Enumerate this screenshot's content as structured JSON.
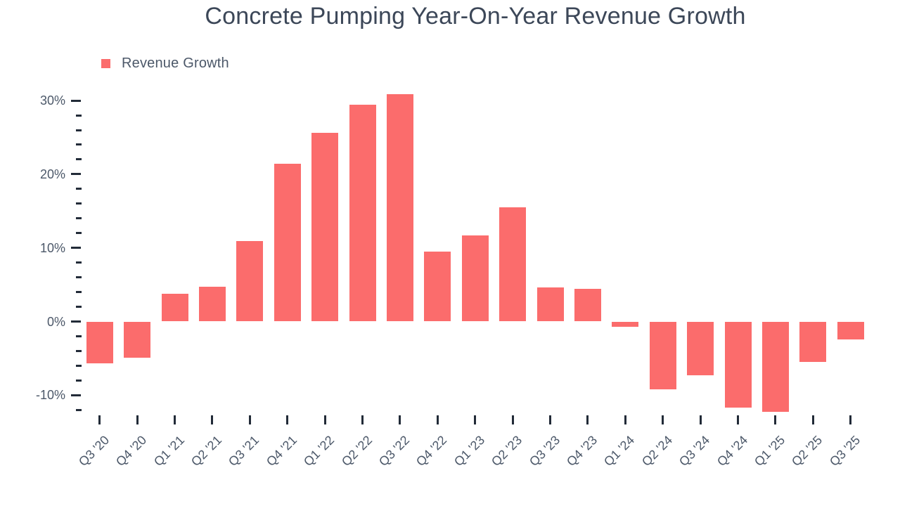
{
  "title": "Concrete Pumping Year-On-Year Revenue Growth",
  "legend": {
    "label": "Revenue Growth",
    "marker_color": "#fb6c6c"
  },
  "colors": {
    "bar": "#fb6c6c",
    "title_text": "#3c4758",
    "axis_text": "#4c5869",
    "tick": "#222b38"
  },
  "chart_data": {
    "type": "bar",
    "title": "Concrete Pumping Year-On-Year Revenue Growth",
    "series_name": "Revenue Growth",
    "unit": "%",
    "categories": [
      "Q3 '20",
      "Q4 '20",
      "Q1 '21",
      "Q2 '21",
      "Q3 '21",
      "Q4 '21",
      "Q1 '22",
      "Q2 '22",
      "Q3 '22",
      "Q4 '22",
      "Q1 '23",
      "Q2 '23",
      "Q3 '23",
      "Q4 '23",
      "Q1 '24",
      "Q2 '24",
      "Q3 '24",
      "Q4 '24",
      "Q1 '25",
      "Q2 '25",
      "Q3 '25"
    ],
    "values": [
      -5.7,
      -4.9,
      3.8,
      4.7,
      10.9,
      21.4,
      25.6,
      29.4,
      30.9,
      9.5,
      11.7,
      15.5,
      4.6,
      4.4,
      -0.7,
      -9.2,
      -7.3,
      -11.7,
      -12.3,
      -5.5,
      -2.4
    ],
    "xlabel": "",
    "ylabel": "",
    "y_axis": {
      "major_ticks": [
        30,
        20,
        10,
        0,
        -10
      ],
      "major_tick_labels": [
        "30%",
        "20%",
        "10%",
        "0%",
        "-10%"
      ],
      "minor_tick_step": 2,
      "range": [
        -12,
        30
      ]
    },
    "legend_position": "top-left",
    "grid": false
  }
}
